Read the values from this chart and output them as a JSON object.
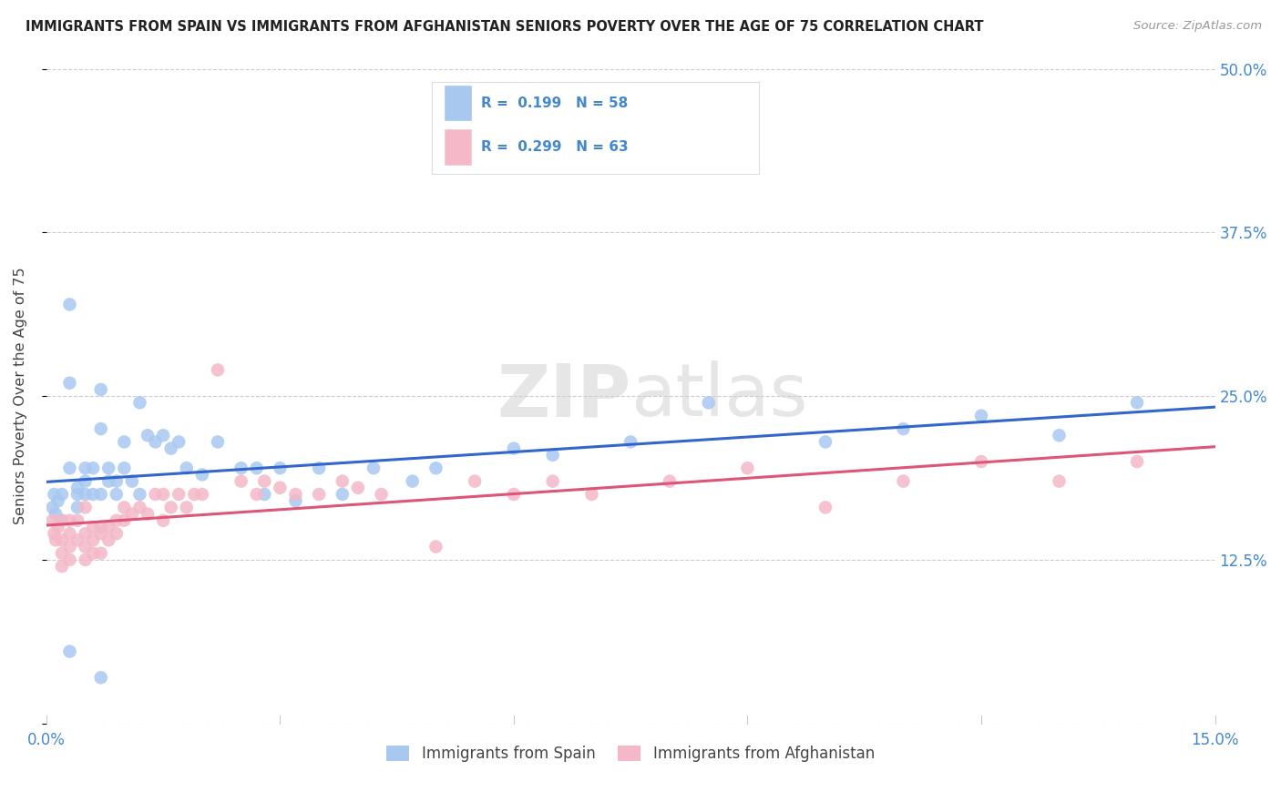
{
  "title": "IMMIGRANTS FROM SPAIN VS IMMIGRANTS FROM AFGHANISTAN SENIORS POVERTY OVER THE AGE OF 75 CORRELATION CHART",
  "source": "Source: ZipAtlas.com",
  "ylabel": "Seniors Poverty Over the Age of 75",
  "xlim": [
    0.0,
    0.15
  ],
  "ylim": [
    0.0,
    0.5
  ],
  "xticks": [
    0.0,
    0.03,
    0.06,
    0.09,
    0.12,
    0.15
  ],
  "xtick_labels": [
    "0.0%",
    "",
    "",
    "",
    "",
    "15.0%"
  ],
  "yticks": [
    0.0,
    0.125,
    0.25,
    0.375,
    0.5
  ],
  "right_ytick_labels": [
    "",
    "12.5%",
    "25.0%",
    "37.5%",
    "50.0%"
  ],
  "grid_color": "#cccccc",
  "background_color": "#ffffff",
  "legend_label1": "Immigrants from Spain",
  "legend_label2": "Immigrants from Afghanistan",
  "color_spain": "#a8c8f0",
  "color_afghanistan": "#f4b8c8",
  "line_color_spain": "#3366cc",
  "line_color_afghanistan": "#dd5577",
  "tick_label_color": "#4488cc",
  "spain_x": [
    0.0008,
    0.001,
    0.0012,
    0.0015,
    0.002,
    0.002,
    0.003,
    0.003,
    0.003,
    0.004,
    0.004,
    0.004,
    0.005,
    0.005,
    0.005,
    0.006,
    0.006,
    0.007,
    0.007,
    0.007,
    0.008,
    0.008,
    0.009,
    0.009,
    0.01,
    0.01,
    0.011,
    0.012,
    0.012,
    0.013,
    0.014,
    0.015,
    0.016,
    0.017,
    0.018,
    0.02,
    0.022,
    0.025,
    0.027,
    0.028,
    0.03,
    0.032,
    0.035,
    0.038,
    0.042,
    0.047,
    0.05,
    0.06,
    0.065,
    0.075,
    0.085,
    0.1,
    0.11,
    0.12,
    0.13,
    0.14,
    0.003,
    0.007
  ],
  "spain_y": [
    0.165,
    0.175,
    0.16,
    0.17,
    0.155,
    0.175,
    0.195,
    0.26,
    0.32,
    0.175,
    0.165,
    0.18,
    0.195,
    0.175,
    0.185,
    0.175,
    0.195,
    0.225,
    0.255,
    0.175,
    0.195,
    0.185,
    0.185,
    0.175,
    0.195,
    0.215,
    0.185,
    0.175,
    0.245,
    0.22,
    0.215,
    0.22,
    0.21,
    0.215,
    0.195,
    0.19,
    0.215,
    0.195,
    0.195,
    0.175,
    0.195,
    0.17,
    0.195,
    0.175,
    0.195,
    0.185,
    0.195,
    0.21,
    0.205,
    0.215,
    0.245,
    0.215,
    0.225,
    0.235,
    0.22,
    0.245,
    0.055,
    0.035
  ],
  "afghanistan_x": [
    0.0008,
    0.001,
    0.0012,
    0.0015,
    0.002,
    0.002,
    0.002,
    0.003,
    0.003,
    0.003,
    0.004,
    0.004,
    0.005,
    0.005,
    0.005,
    0.006,
    0.006,
    0.006,
    0.007,
    0.007,
    0.007,
    0.008,
    0.008,
    0.009,
    0.009,
    0.01,
    0.01,
    0.011,
    0.012,
    0.013,
    0.014,
    0.015,
    0.015,
    0.016,
    0.017,
    0.018,
    0.019,
    0.02,
    0.022,
    0.025,
    0.027,
    0.028,
    0.03,
    0.032,
    0.035,
    0.038,
    0.04,
    0.043,
    0.05,
    0.055,
    0.06,
    0.065,
    0.07,
    0.08,
    0.09,
    0.1,
    0.11,
    0.12,
    0.13,
    0.14,
    0.002,
    0.003,
    0.005
  ],
  "afghanistan_y": [
    0.155,
    0.145,
    0.14,
    0.15,
    0.14,
    0.13,
    0.12,
    0.145,
    0.135,
    0.125,
    0.155,
    0.14,
    0.145,
    0.135,
    0.125,
    0.15,
    0.14,
    0.13,
    0.145,
    0.15,
    0.13,
    0.15,
    0.14,
    0.155,
    0.145,
    0.155,
    0.165,
    0.16,
    0.165,
    0.16,
    0.175,
    0.175,
    0.155,
    0.165,
    0.175,
    0.165,
    0.175,
    0.175,
    0.27,
    0.185,
    0.175,
    0.185,
    0.18,
    0.175,
    0.175,
    0.185,
    0.18,
    0.175,
    0.135,
    0.185,
    0.175,
    0.185,
    0.175,
    0.185,
    0.195,
    0.165,
    0.185,
    0.2,
    0.185,
    0.2,
    0.155,
    0.155,
    0.165
  ]
}
